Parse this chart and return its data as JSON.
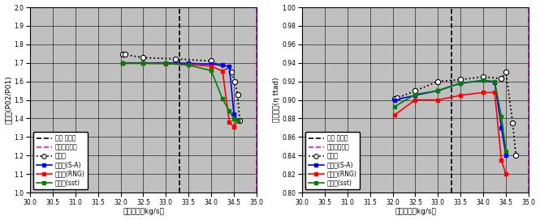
{
  "fig_width": 6.65,
  "fig_height": 2.72,
  "bg_color": "#c0c0c0",
  "design_flow": 33.3,
  "choke_flow": 35.0,
  "xlabel": "質量流量［kg/s］",
  "xlim": [
    30.0,
    35.0
  ],
  "xticks": [
    30.0,
    30.5,
    31.0,
    31.5,
    32.0,
    32.5,
    33.0,
    33.5,
    34.0,
    34.5,
    35.0
  ],
  "left_ylabel": "圧力比(P02/P01)",
  "left_ylim": [
    1.0,
    2.0
  ],
  "left_yticks": [
    1.0,
    1.1,
    1.2,
    1.3,
    1.4,
    1.5,
    1.6,
    1.7,
    1.8,
    1.9,
    2.0
  ],
  "right_ylabel": "断熱効率(η ttad)",
  "right_ylim": [
    0.8,
    1.0
  ],
  "right_yticks": [
    0.8,
    0.82,
    0.84,
    0.86,
    0.88,
    0.9,
    0.92,
    0.94,
    0.96,
    0.98,
    1.0
  ],
  "leg_design": "設計 点流量",
  "leg_choke": "チョーク流量",
  "leg_measured": "計測値",
  "leg_sa": "解析値(S-A)",
  "leg_rng": "解析値(RNG)",
  "leg_sst": "解析値(sst)",
  "left_measured_x": [
    32.05,
    32.1,
    32.5,
    33.2,
    34.0,
    34.45,
    34.52,
    34.58,
    34.63
  ],
  "left_measured_y": [
    1.748,
    1.745,
    1.728,
    1.722,
    1.71,
    1.65,
    1.598,
    1.528,
    1.39
  ],
  "left_sa_x": [
    32.05,
    32.5,
    33.0,
    33.5,
    34.0,
    34.25,
    34.4,
    34.5,
    34.58
  ],
  "left_sa_y": [
    1.7,
    1.7,
    1.7,
    1.698,
    1.693,
    1.688,
    1.68,
    1.425,
    1.39
  ],
  "left_rng_x": [
    32.05,
    32.5,
    33.0,
    33.5,
    34.0,
    34.25,
    34.4,
    34.5,
    34.58
  ],
  "left_rng_y": [
    1.697,
    1.697,
    1.696,
    1.692,
    1.682,
    1.655,
    1.38,
    1.355,
    1.39
  ],
  "left_sst_x": [
    32.05,
    32.5,
    33.0,
    33.5,
    34.0,
    34.25,
    34.4,
    34.5,
    34.58
  ],
  "left_sst_y": [
    1.698,
    1.698,
    1.697,
    1.688,
    1.658,
    1.505,
    1.44,
    1.398,
    1.39
  ],
  "right_measured_x": [
    32.05,
    32.1,
    32.5,
    33.0,
    33.5,
    34.0,
    34.4,
    34.5,
    34.65,
    34.72
  ],
  "right_measured_y": [
    0.901,
    0.902,
    0.91,
    0.92,
    0.922,
    0.925,
    0.923,
    0.93,
    0.875,
    0.84
  ],
  "right_sa_x": [
    32.05,
    32.5,
    33.0,
    33.5,
    34.0,
    34.25,
    34.4,
    34.5
  ],
  "right_sa_y": [
    0.9,
    0.905,
    0.91,
    0.918,
    0.921,
    0.919,
    0.87,
    0.84
  ],
  "right_rng_x": [
    32.05,
    32.5,
    33.0,
    33.5,
    34.0,
    34.25,
    34.4,
    34.5
  ],
  "right_rng_y": [
    0.884,
    0.9,
    0.9,
    0.905,
    0.908,
    0.908,
    0.835,
    0.82
  ],
  "right_sst_x": [
    32.05,
    32.5,
    33.0,
    33.5,
    34.0,
    34.25,
    34.4,
    34.5
  ],
  "right_sst_y": [
    0.893,
    0.906,
    0.91,
    0.918,
    0.921,
    0.92,
    0.882,
    0.845
  ]
}
